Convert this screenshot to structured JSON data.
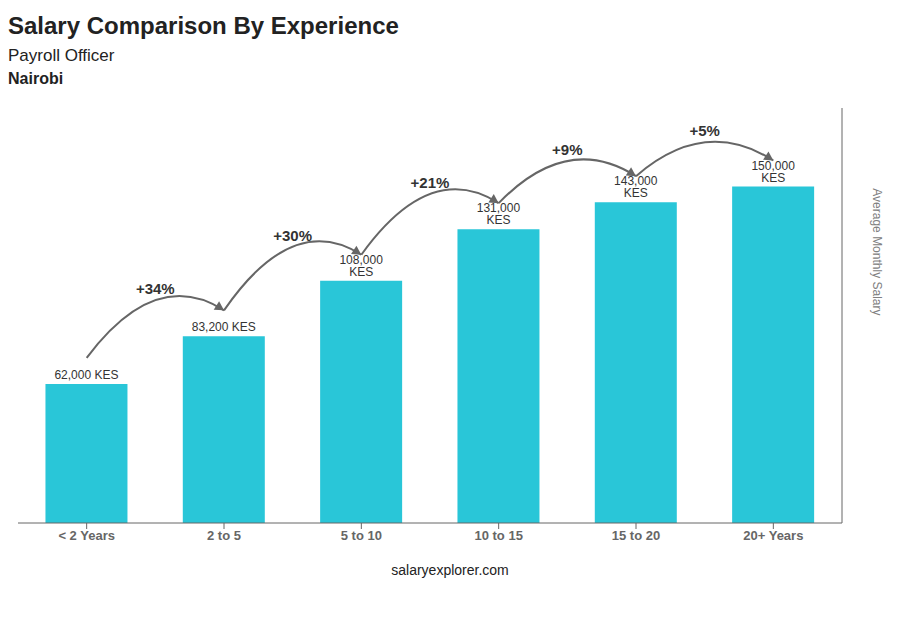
{
  "chart_data": {
    "type": "bar",
    "title": "Salary Comparison By Experience",
    "subtitle": "Payroll Officer",
    "categories": [
      "< 2 Years",
      "2 to 5",
      "5 to 10",
      "10 to 15",
      "15 to 20",
      "20+ Years"
    ],
    "values": [
      62000,
      83200,
      108000,
      131000,
      143000,
      150000
    ],
    "value_labels": [
      "62,000 KES",
      "83,200 KES",
      "108,000 KES",
      "131,000 KES",
      "143,000 KES",
      "150,000 KES"
    ],
    "data_labels": true,
    "color": "#29C6D8",
    "ylabel": "Average Monthly Salary",
    "ylim": [
      0,
      185000
    ],
    "tick_labels": "x",
    "grid": false,
    "annotations": [
      {
        "text": "Nairobi"
      },
      {
        "text": "salaryexplorer.com"
      },
      {
        "text": "+34%",
        "from": "< 2 Years",
        "to": "2 to 5"
      },
      {
        "text": "+30%",
        "from": "2 to 5",
        "to": "5 to 10"
      },
      {
        "text": "+21%",
        "from": "5 to 10",
        "to": "10 to 15"
      },
      {
        "text": "+9%",
        "from": "10 to 15",
        "to": "15 to 20"
      },
      {
        "text": "+5%",
        "from": "15 to 20",
        "to": "20+ Years"
      }
    ]
  }
}
